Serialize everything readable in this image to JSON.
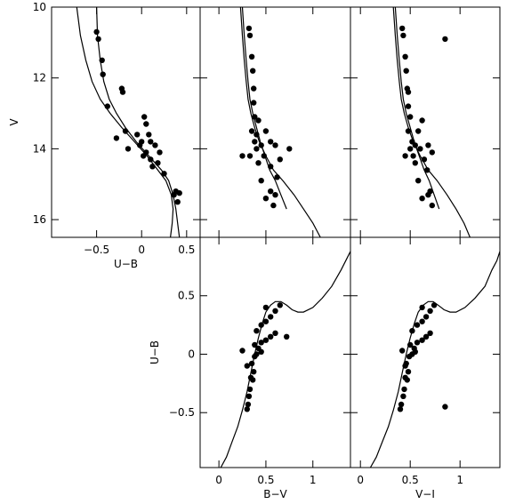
{
  "chart_data": [
    {
      "id": "v-ub",
      "type": "scatter",
      "xlabel": "U−B",
      "ylabel": "V",
      "xlim": [
        -1.0,
        0.65
      ],
      "ylim": [
        16.5,
        10.0
      ],
      "xticks": [
        -0.5,
        0,
        0.5
      ],
      "xtick_labels": [
        "−0.5",
        "0",
        "0.5"
      ],
      "yticks": [
        10,
        12,
        14,
        16
      ],
      "ytick_labels": [
        "10",
        "12",
        "14",
        "16"
      ],
      "curves": [
        {
          "x": [
            -0.5,
            -0.49,
            -0.46,
            -0.42,
            -0.36,
            -0.28,
            -0.18,
            -0.06,
            0.08,
            0.22,
            0.3,
            0.35,
            0.38,
            0.4,
            0.42
          ],
          "y": [
            10.0,
            10.8,
            11.5,
            12.1,
            12.6,
            13.0,
            13.4,
            13.8,
            14.2,
            14.6,
            14.9,
            15.3,
            15.7,
            16.1,
            16.5
          ]
        },
        {
          "x": [
            -0.72,
            -0.68,
            -0.62,
            -0.55,
            -0.46,
            -0.35,
            -0.22,
            -0.08,
            0.06,
            0.18,
            0.27,
            0.33,
            0.35,
            0.34,
            0.32
          ],
          "y": [
            10.0,
            10.8,
            11.5,
            12.1,
            12.6,
            13.0,
            13.4,
            13.8,
            14.2,
            14.6,
            14.9,
            15.3,
            15.7,
            16.1,
            16.5
          ]
        }
      ],
      "points": [
        {
          "x": -0.5,
          "y": 10.7
        },
        {
          "x": -0.48,
          "y": 10.9
        },
        {
          "x": -0.44,
          "y": 11.5
        },
        {
          "x": -0.43,
          "y": 11.9
        },
        {
          "x": -0.22,
          "y": 12.3
        },
        {
          "x": -0.21,
          "y": 12.4
        },
        {
          "x": -0.38,
          "y": 12.8
        },
        {
          "x": 0.03,
          "y": 13.1
        },
        {
          "x": -0.18,
          "y": 13.5
        },
        {
          "x": 0.05,
          "y": 13.3
        },
        {
          "x": -0.05,
          "y": 13.6
        },
        {
          "x": 0.08,
          "y": 13.6
        },
        {
          "x": -0.28,
          "y": 13.7
        },
        {
          "x": 0.0,
          "y": 13.8
        },
        {
          "x": 0.1,
          "y": 13.8
        },
        {
          "x": -0.02,
          "y": 13.9
        },
        {
          "x": 0.15,
          "y": 13.9
        },
        {
          "x": -0.15,
          "y": 14.0
        },
        {
          "x": 0.05,
          "y": 14.1
        },
        {
          "x": 0.2,
          "y": 14.1
        },
        {
          "x": 0.02,
          "y": 14.2
        },
        {
          "x": 0.1,
          "y": 14.3
        },
        {
          "x": 0.18,
          "y": 14.4
        },
        {
          "x": 0.12,
          "y": 14.5
        },
        {
          "x": 0.25,
          "y": 14.7
        },
        {
          "x": 0.38,
          "y": 15.2
        },
        {
          "x": 0.42,
          "y": 15.25
        },
        {
          "x": 0.36,
          "y": 15.3
        },
        {
          "x": 0.4,
          "y": 15.5
        }
      ]
    },
    {
      "id": "v-bv",
      "type": "scatter",
      "xlabel": "",
      "ylabel": "",
      "xlim": [
        -0.2,
        1.4
      ],
      "ylim": [
        16.5,
        10.0
      ],
      "xticks": [
        0,
        0.5,
        1
      ],
      "yticks": [
        10,
        12,
        14,
        16
      ],
      "curves": [
        {
          "x": [
            0.23,
            0.25,
            0.27,
            0.29,
            0.31,
            0.34,
            0.38,
            0.43,
            0.5,
            0.58,
            0.68,
            0.8,
            0.9,
            1.0,
            1.08
          ],
          "y": [
            10.0,
            10.8,
            11.5,
            12.1,
            12.6,
            13.0,
            13.4,
            13.8,
            14.2,
            14.6,
            14.9,
            15.3,
            15.7,
            16.1,
            16.5
          ]
        },
        {
          "x": [
            0.25,
            0.27,
            0.29,
            0.31,
            0.33,
            0.36,
            0.4,
            0.44,
            0.49,
            0.54,
            0.6,
            0.66,
            0.72
          ],
          "y": [
            10.0,
            10.8,
            11.5,
            12.1,
            12.6,
            13.0,
            13.4,
            13.8,
            14.2,
            14.6,
            14.9,
            15.3,
            15.7
          ]
        }
      ],
      "points": [
        {
          "x": 0.32,
          "y": 10.6
        },
        {
          "x": 0.33,
          "y": 10.8
        },
        {
          "x": 0.35,
          "y": 11.4
        },
        {
          "x": 0.36,
          "y": 11.8
        },
        {
          "x": 0.37,
          "y": 12.3
        },
        {
          "x": 0.37,
          "y": 12.7
        },
        {
          "x": 0.38,
          "y": 13.1
        },
        {
          "x": 0.42,
          "y": 13.2
        },
        {
          "x": 0.35,
          "y": 13.5
        },
        {
          "x": 0.4,
          "y": 13.6
        },
        {
          "x": 0.5,
          "y": 13.5
        },
        {
          "x": 0.38,
          "y": 13.8
        },
        {
          "x": 0.45,
          "y": 13.9
        },
        {
          "x": 0.55,
          "y": 13.8
        },
        {
          "x": 0.6,
          "y": 13.9
        },
        {
          "x": 0.4,
          "y": 14.0
        },
        {
          "x": 0.75,
          "y": 14.0
        },
        {
          "x": 0.25,
          "y": 14.2
        },
        {
          "x": 0.33,
          "y": 14.2
        },
        {
          "x": 0.48,
          "y": 14.2
        },
        {
          "x": 0.65,
          "y": 14.3
        },
        {
          "x": 0.42,
          "y": 14.4
        },
        {
          "x": 0.55,
          "y": 14.5
        },
        {
          "x": 0.62,
          "y": 14.8
        },
        {
          "x": 0.45,
          "y": 14.9
        },
        {
          "x": 0.55,
          "y": 15.2
        },
        {
          "x": 0.6,
          "y": 15.3
        },
        {
          "x": 0.5,
          "y": 15.4
        },
        {
          "x": 0.58,
          "y": 15.6
        }
      ]
    },
    {
      "id": "v-vi",
      "type": "scatter",
      "xlabel": "",
      "ylabel": "",
      "xlim": [
        -0.1,
        1.4
      ],
      "ylim": [
        16.5,
        10.0
      ],
      "xticks": [
        0,
        0.5,
        1
      ],
      "yticks": [
        10,
        12,
        14,
        16
      ],
      "curves": [
        {
          "x": [
            0.33,
            0.35,
            0.37,
            0.39,
            0.41,
            0.44,
            0.48,
            0.53,
            0.6,
            0.68,
            0.77,
            0.87,
            0.96,
            1.04,
            1.1
          ],
          "y": [
            10.0,
            10.8,
            11.5,
            12.1,
            12.6,
            13.0,
            13.4,
            13.8,
            14.2,
            14.6,
            14.9,
            15.3,
            15.7,
            16.1,
            16.5
          ]
        },
        {
          "x": [
            0.35,
            0.37,
            0.39,
            0.41,
            0.43,
            0.46,
            0.5,
            0.54,
            0.59,
            0.64,
            0.69,
            0.74,
            0.79
          ],
          "y": [
            10.0,
            10.8,
            11.5,
            12.1,
            12.6,
            13.0,
            13.4,
            13.8,
            14.2,
            14.6,
            14.9,
            15.3,
            15.7
          ]
        }
      ],
      "points": [
        {
          "x": 0.42,
          "y": 10.6
        },
        {
          "x": 0.43,
          "y": 10.8
        },
        {
          "x": 0.85,
          "y": 10.9
        },
        {
          "x": 0.45,
          "y": 11.4
        },
        {
          "x": 0.46,
          "y": 11.8
        },
        {
          "x": 0.47,
          "y": 12.3
        },
        {
          "x": 0.48,
          "y": 12.4
        },
        {
          "x": 0.48,
          "y": 12.8
        },
        {
          "x": 0.5,
          "y": 13.1
        },
        {
          "x": 0.62,
          "y": 13.2
        },
        {
          "x": 0.48,
          "y": 13.5
        },
        {
          "x": 0.58,
          "y": 13.5
        },
        {
          "x": 0.52,
          "y": 13.8
        },
        {
          "x": 0.55,
          "y": 13.9
        },
        {
          "x": 0.68,
          "y": 13.9
        },
        {
          "x": 0.5,
          "y": 14.0
        },
        {
          "x": 0.6,
          "y": 14.0
        },
        {
          "x": 0.72,
          "y": 14.1
        },
        {
          "x": 0.45,
          "y": 14.2
        },
        {
          "x": 0.53,
          "y": 14.2
        },
        {
          "x": 0.64,
          "y": 14.3
        },
        {
          "x": 0.55,
          "y": 14.4
        },
        {
          "x": 0.67,
          "y": 14.6
        },
        {
          "x": 0.58,
          "y": 14.9
        },
        {
          "x": 0.7,
          "y": 15.2
        },
        {
          "x": 0.68,
          "y": 15.3
        },
        {
          "x": 0.62,
          "y": 15.4
        },
        {
          "x": 0.72,
          "y": 15.6
        }
      ]
    },
    {
      "id": "ub-bv",
      "type": "scatter",
      "xlabel": "B−V",
      "ylabel": "U−B",
      "xlim": [
        -0.2,
        1.4
      ],
      "ylim": [
        -0.97,
        1.0
      ],
      "xticks": [
        0,
        0.5,
        1
      ],
      "xtick_labels": [
        "0",
        "0.5",
        "1"
      ],
      "yticks": [
        -0.5,
        0,
        0.5
      ],
      "ytick_labels": [
        "−0.5",
        "0",
        "0.5"
      ],
      "curves": [
        {
          "x": [
            0.02,
            0.08,
            0.14,
            0.2,
            0.25,
            0.3,
            0.34,
            0.38,
            0.42,
            0.46,
            0.5,
            0.55,
            0.6,
            0.66,
            0.72,
            0.78,
            0.84,
            0.9,
            1.0,
            1.1,
            1.2,
            1.3,
            1.35,
            1.4
          ],
          "y": [
            -0.97,
            -0.88,
            -0.75,
            -0.62,
            -0.48,
            -0.32,
            -0.16,
            0.0,
            0.14,
            0.26,
            0.36,
            0.42,
            0.45,
            0.45,
            0.42,
            0.38,
            0.36,
            0.36,
            0.4,
            0.48,
            0.58,
            0.72,
            0.8,
            0.88
          ]
        }
      ],
      "points": [
        {
          "x": 0.3,
          "y": -0.47
        },
        {
          "x": 0.31,
          "y": -0.43
        },
        {
          "x": 0.32,
          "y": -0.36
        },
        {
          "x": 0.33,
          "y": -0.3
        },
        {
          "x": 0.34,
          "y": -0.2
        },
        {
          "x": 0.36,
          "y": -0.22
        },
        {
          "x": 0.37,
          "y": -0.15
        },
        {
          "x": 0.35,
          "y": -0.08
        },
        {
          "x": 0.38,
          "y": -0.02
        },
        {
          "x": 0.4,
          "y": 0.0
        },
        {
          "x": 0.42,
          "y": 0.05
        },
        {
          "x": 0.38,
          "y": 0.08
        },
        {
          "x": 0.45,
          "y": 0.1
        },
        {
          "x": 0.5,
          "y": 0.12
        },
        {
          "x": 0.55,
          "y": 0.15
        },
        {
          "x": 0.6,
          "y": 0.18
        },
        {
          "x": 0.72,
          "y": 0.15
        },
        {
          "x": 0.4,
          "y": 0.2
        },
        {
          "x": 0.45,
          "y": 0.25
        },
        {
          "x": 0.5,
          "y": 0.28
        },
        {
          "x": 0.55,
          "y": 0.32
        },
        {
          "x": 0.6,
          "y": 0.37
        },
        {
          "x": 0.5,
          "y": 0.4
        },
        {
          "x": 0.65,
          "y": 0.42
        },
        {
          "x": 0.25,
          "y": 0.03
        },
        {
          "x": 0.3,
          "y": -0.1
        },
        {
          "x": 0.45,
          "y": 0.02
        }
      ]
    },
    {
      "id": "ub-vi",
      "type": "scatter",
      "xlabel": "V−I",
      "ylabel": "",
      "xlim": [
        -0.1,
        1.4
      ],
      "ylim": [
        -0.97,
        1.0
      ],
      "xticks": [
        0,
        0.5,
        1
      ],
      "xtick_labels": [
        "0",
        "0.5",
        "1"
      ],
      "yticks": [
        -0.5,
        0,
        0.5
      ],
      "curves": [
        {
          "x": [
            0.1,
            0.16,
            0.22,
            0.28,
            0.33,
            0.38,
            0.42,
            0.46,
            0.5,
            0.54,
            0.58,
            0.63,
            0.68,
            0.73,
            0.78,
            0.84,
            0.9,
            0.96,
            1.05,
            1.15,
            1.25,
            1.32,
            1.37,
            1.4
          ],
          "y": [
            -0.97,
            -0.88,
            -0.75,
            -0.62,
            -0.48,
            -0.32,
            -0.16,
            0.0,
            0.14,
            0.26,
            0.36,
            0.42,
            0.45,
            0.45,
            0.42,
            0.38,
            0.36,
            0.36,
            0.4,
            0.48,
            0.58,
            0.72,
            0.8,
            0.88
          ]
        }
      ],
      "points": [
        {
          "x": 0.4,
          "y": -0.47
        },
        {
          "x": 0.85,
          "y": -0.45
        },
        {
          "x": 0.41,
          "y": -0.43
        },
        {
          "x": 0.43,
          "y": -0.36
        },
        {
          "x": 0.44,
          "y": -0.3
        },
        {
          "x": 0.45,
          "y": -0.2
        },
        {
          "x": 0.47,
          "y": -0.22
        },
        {
          "x": 0.48,
          "y": -0.15
        },
        {
          "x": 0.46,
          "y": -0.08
        },
        {
          "x": 0.49,
          "y": -0.02
        },
        {
          "x": 0.52,
          "y": 0.0
        },
        {
          "x": 0.54,
          "y": 0.05
        },
        {
          "x": 0.5,
          "y": 0.08
        },
        {
          "x": 0.57,
          "y": 0.1
        },
        {
          "x": 0.62,
          "y": 0.12
        },
        {
          "x": 0.66,
          "y": 0.15
        },
        {
          "x": 0.7,
          "y": 0.18
        },
        {
          "x": 0.52,
          "y": 0.2
        },
        {
          "x": 0.57,
          "y": 0.25
        },
        {
          "x": 0.62,
          "y": 0.28
        },
        {
          "x": 0.66,
          "y": 0.32
        },
        {
          "x": 0.7,
          "y": 0.37
        },
        {
          "x": 0.62,
          "y": 0.4
        },
        {
          "x": 0.74,
          "y": 0.42
        },
        {
          "x": 0.42,
          "y": 0.03
        },
        {
          "x": 0.45,
          "y": -0.1
        },
        {
          "x": 0.55,
          "y": 0.02
        }
      ]
    }
  ]
}
